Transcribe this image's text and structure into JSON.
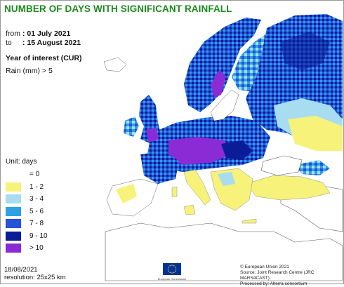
{
  "header": {
    "title": "NUMBER OF DAYS WITH SIGNIFICANT RAINFALL",
    "from_label": "from",
    "from_value": ": 01 July 2021",
    "to_label": "to",
    "to_value": ": 15 August 2021",
    "year_of_interest": "Year of interest (CUR)",
    "variable": "Rain (mm) > 5"
  },
  "legend": {
    "unit": "Unit: days",
    "classes": [
      {
        "label": "= 0",
        "color": "#ffffff"
      },
      {
        "label": "1 - 2",
        "color": "#f6f27a"
      },
      {
        "label": "3 - 4",
        "color": "#a8dcf0"
      },
      {
        "label": "5 - 6",
        "color": "#2ea0e6"
      },
      {
        "label": "7 - 8",
        "color": "#2452d8"
      },
      {
        "label": "9 - 10",
        "color": "#0a1c98"
      },
      {
        "label": "> 10",
        "color": "#8a2bd6"
      }
    ]
  },
  "footer": {
    "date": "18/08/2021",
    "resolution": "resolution: 25x25 km",
    "credit_1": "© European Union 2021",
    "credit_2": "Source: Joint Research Centre (JRC MARS4CAST)",
    "credit_3": "Processed by: Alterra consortium",
    "logo_text": "European Commission"
  },
  "colors": {
    "title": "#1c8a1c",
    "eu_flag_blue": "#003399",
    "eu_stars": "#ffcc00"
  }
}
